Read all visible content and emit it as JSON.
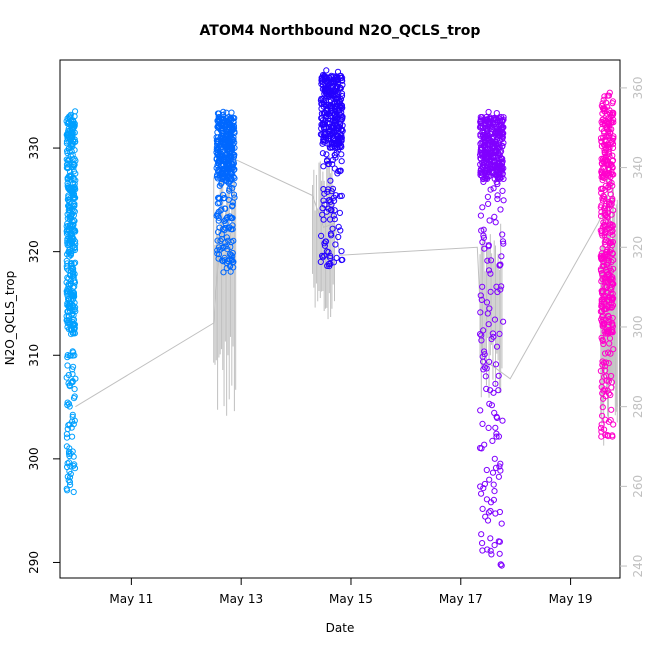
{
  "chart_data": {
    "type": "scatter",
    "title": "ATOM4 Northbound N2O_QCLS_trop",
    "xlabel": "Date",
    "ylabel": "N2O_QCLS_trop",
    "x_ticks": [
      "May 11",
      "May 13",
      "May 15",
      "May 17",
      "May 19"
    ],
    "x_tick_days": [
      11,
      13,
      15,
      17,
      19
    ],
    "xlim_days": [
      9.7,
      19.9
    ],
    "y_ticks": [
      290,
      300,
      310,
      320,
      330
    ],
    "ylim": [
      288.5,
      338.5
    ],
    "right_axis": {
      "ticks": [
        240,
        260,
        280,
        300,
        320,
        340,
        360
      ],
      "ylim": [
        237,
        367
      ],
      "color": "#c0c0c0"
    },
    "grid": false,
    "legend": "none",
    "series": [
      {
        "color": "#00a0ff",
        "day_start": 9.82,
        "day_end": 9.98,
        "y_range": [
          296.5,
          334.5
        ],
        "core": [
          312,
          333
        ],
        "count": 420
      },
      {
        "color": "#0068ff",
        "day_start": 12.55,
        "day_end": 12.88,
        "y_range": [
          318,
          333.5
        ],
        "core": [
          327,
          333
        ],
        "count": 380
      },
      {
        "color": "#2400ff",
        "day_start": 14.45,
        "day_end": 14.85,
        "y_range": [
          318.5,
          337.5
        ],
        "core": [
          330,
          337
        ],
        "count": 380
      },
      {
        "color": "#8000ff",
        "day_start": 17.35,
        "day_end": 17.78,
        "y_range": [
          289.5,
          333.5
        ],
        "core": [
          327,
          333
        ],
        "count": 460
      },
      {
        "color": "#ff00cc",
        "day_start": 19.55,
        "day_end": 19.78,
        "y_range": [
          302,
          335.5
        ],
        "core": [
          312,
          334
        ],
        "count": 420
      }
    ],
    "line_series": {
      "color": "#c0c0c0",
      "axis": "right",
      "points": [
        [
          9.98,
          280
        ],
        [
          12.5,
          301
        ],
        [
          12.6,
          320
        ],
        [
          12.9,
          342
        ],
        [
          14.3,
          333
        ],
        [
          14.5,
          325
        ],
        [
          14.7,
          326
        ],
        [
          14.8,
          318
        ],
        [
          17.3,
          320
        ],
        [
          17.4,
          292
        ],
        [
          17.6,
          290
        ],
        [
          17.9,
          287
        ],
        [
          19.5,
          326
        ],
        [
          19.7,
          332
        ],
        [
          19.85,
          280
        ]
      ],
      "spikes": [
        {
          "day_start": 12.5,
          "day_end": 12.9,
          "low": 275,
          "high": 345
        },
        {
          "day_start": 14.3,
          "day_end": 14.7,
          "low": 298,
          "high": 343
        },
        {
          "day_start": 17.35,
          "day_end": 17.75,
          "low": 282,
          "high": 330
        },
        {
          "day_start": 19.55,
          "day_end": 19.85,
          "low": 270,
          "high": 340
        }
      ]
    }
  }
}
